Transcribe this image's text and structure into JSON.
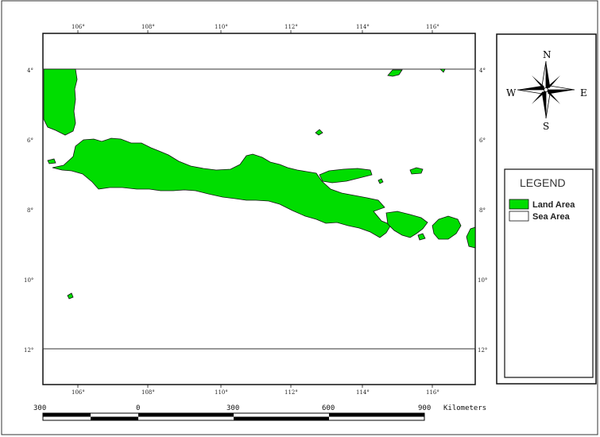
{
  "map": {
    "lon_ticks": [
      "106°",
      "108°",
      "110°",
      "112°",
      "114°",
      "116°"
    ],
    "lat_ticks": [
      "4°",
      "6°",
      "8°",
      "10°",
      "12°"
    ],
    "land_color": "#00dd00",
    "sea_color": "#ffffff"
  },
  "compass": {
    "n": "N",
    "s": "S",
    "e": "E",
    "w": "W"
  },
  "legend": {
    "title": "LEGEND",
    "items": [
      {
        "label": "Land Area",
        "color": "#00dd00"
      },
      {
        "label": "Sea Area",
        "color": "#ffffff"
      }
    ]
  },
  "scale_bar": {
    "labels": [
      "300",
      "0",
      "300",
      "600",
      "900"
    ],
    "unit": "Kilometers"
  }
}
